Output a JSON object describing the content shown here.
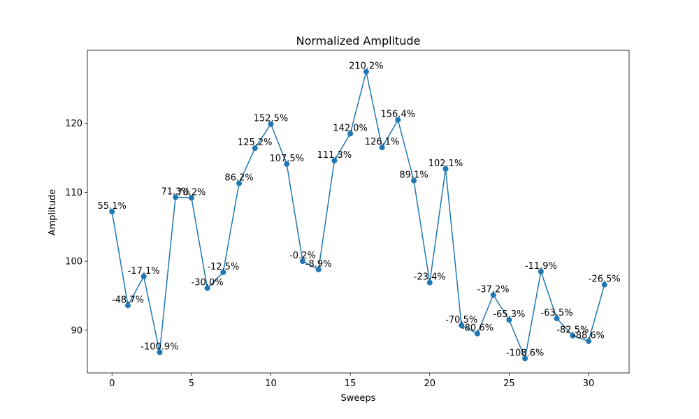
{
  "chart_data": {
    "type": "line",
    "title": "Normalized Amplitude",
    "xlabel": "Sweeps",
    "ylabel": "Amplitude",
    "xlim": [
      -1.55,
      32.55
    ],
    "ylim": [
      83.8,
      130.6
    ],
    "xticks": [
      0,
      5,
      10,
      15,
      20,
      25,
      30
    ],
    "yticks": [
      90,
      100,
      110,
      120
    ],
    "grid": false,
    "color": "#1f77b4",
    "series": [
      {
        "x": [
          0,
          1,
          2,
          3,
          4,
          5,
          6,
          7,
          8,
          9,
          10,
          11,
          12,
          13,
          14,
          15,
          16,
          17,
          18,
          19,
          20,
          21,
          22,
          23,
          24,
          25,
          26,
          27,
          28,
          29,
          30,
          31
        ],
        "values": [
          107.2,
          93.6,
          97.8,
          86.8,
          109.3,
          109.2,
          96.1,
          98.4,
          111.3,
          116.4,
          119.9,
          114.1,
          100.0,
          98.8,
          114.6,
          118.5,
          127.5,
          116.5,
          120.5,
          111.7,
          96.9,
          113.4,
          90.7,
          89.5,
          95.1,
          91.5,
          85.9,
          98.5,
          91.7,
          89.2,
          88.4,
          96.6
        ],
        "labels": [
          "55.1%",
          "-48.7%",
          "-17.1%",
          "-100.9%",
          "71.3%",
          "70.2%",
          "-30.0%",
          "-12.5%",
          "86.2%",
          "125.2%",
          "152.5%",
          "107.5%",
          "-0.2%",
          "-8.9%",
          "111.3%",
          "142.0%",
          "210.2%",
          "126.1%",
          "156.4%",
          "89.1%",
          "-23.4%",
          "102.1%",
          "-70.5%",
          "-80.6%",
          "-37.2%",
          "-65.3%",
          "-108.6%",
          "-11.9%",
          "-63.5%",
          "-82.5%",
          "-88.6%",
          "-26.5%"
        ]
      }
    ]
  }
}
